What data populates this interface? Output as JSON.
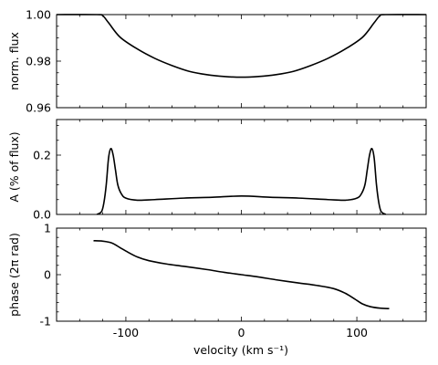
{
  "chart_data": [
    {
      "type": "line",
      "title": "",
      "ylabel": "norm. flux",
      "xlim": [
        -160,
        160
      ],
      "ylim": [
        0.96,
        1.0
      ],
      "yticks": [
        0.96,
        0.98,
        1.0
      ],
      "ytick_labels": [
        "0.96",
        "0.98",
        "1.00"
      ],
      "series": [
        {
          "x": [
            -160,
            -125,
            -120,
            -115,
            -105,
            -90,
            -75,
            -60,
            -45,
            -30,
            -15,
            0,
            15,
            30,
            45,
            60,
            75,
            90,
            105,
            115,
            120,
            125,
            160
          ],
          "y": [
            1.0,
            1.0,
            0.9995,
            0.9965,
            0.9903,
            0.9852,
            0.9812,
            0.9781,
            0.9756,
            0.9742,
            0.9734,
            0.9731,
            0.9734,
            0.9742,
            0.9756,
            0.9781,
            0.9812,
            0.9852,
            0.9903,
            0.9965,
            0.9995,
            1.0,
            1.0
          ]
        }
      ]
    },
    {
      "type": "line",
      "title": "",
      "ylabel": "A (% of flux)",
      "xlim": [
        -160,
        160
      ],
      "ylim": [
        0.0,
        0.32
      ],
      "yticks": [
        0.0,
        0.2
      ],
      "ytick_labels": [
        "0.0",
        "0.2"
      ],
      "series": [
        {
          "x": [
            -125,
            -121,
            -119,
            -117,
            -115,
            -113,
            -111,
            -109,
            -107,
            -104,
            -100,
            -90,
            -75,
            -50,
            -25,
            0,
            25,
            50,
            75,
            90,
            100,
            104,
            107,
            109,
            111,
            113,
            115,
            117,
            119,
            121,
            125
          ],
          "y": [
            0.0,
            0.01,
            0.04,
            0.1,
            0.19,
            0.222,
            0.2,
            0.15,
            0.1,
            0.07,
            0.055,
            0.048,
            0.05,
            0.055,
            0.058,
            0.062,
            0.058,
            0.055,
            0.05,
            0.048,
            0.055,
            0.07,
            0.1,
            0.15,
            0.2,
            0.222,
            0.19,
            0.1,
            0.04,
            0.01,
            0.0
          ]
        }
      ]
    },
    {
      "type": "line",
      "title": "",
      "xlabel": "velocity (km s⁻¹)",
      "ylabel": "phase (2π rad)",
      "xlim": [
        -160,
        160
      ],
      "ylim": [
        -1.0,
        1.0
      ],
      "xticks": [
        -100,
        0,
        100
      ],
      "xtick_labels": [
        "-100",
        "0",
        "100"
      ],
      "yticks": [
        -1,
        0,
        1
      ],
      "ytick_labels": [
        "-1",
        "0",
        "1"
      ],
      "series": [
        {
          "x": [
            -128,
            -120,
            -112,
            -105,
            -98,
            -90,
            -80,
            -65,
            -50,
            -30,
            -15,
            0,
            15,
            30,
            50,
            65,
            80,
            90,
            98,
            105,
            112,
            120,
            128
          ],
          "y": [
            0.73,
            0.72,
            0.68,
            0.58,
            0.48,
            0.38,
            0.3,
            0.23,
            0.18,
            0.11,
            0.05,
            0.0,
            -0.05,
            -0.11,
            -0.18,
            -0.23,
            -0.3,
            -0.4,
            -0.52,
            -0.63,
            -0.69,
            -0.72,
            -0.73
          ]
        }
      ]
    }
  ]
}
